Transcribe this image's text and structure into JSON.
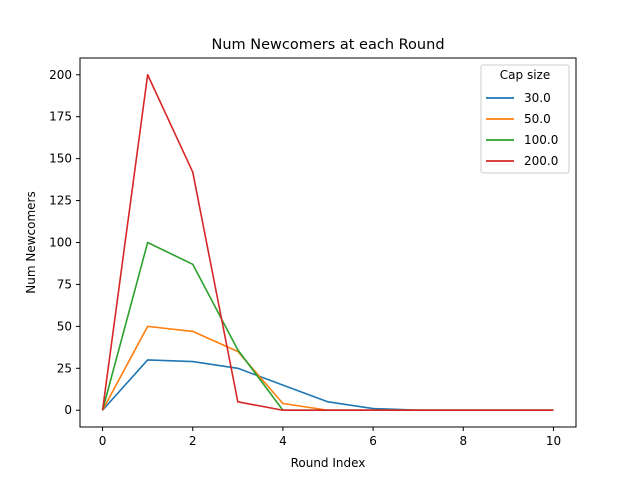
{
  "chart_data": {
    "type": "line",
    "title": "Num Newcomers at each Round",
    "xlabel": "Round Index",
    "ylabel": "Num Newcomers",
    "xlim": [
      -0.5,
      10.5
    ],
    "ylim": [
      -10,
      210
    ],
    "xticks": [
      0,
      2,
      4,
      6,
      8,
      10
    ],
    "yticks": [
      0,
      25,
      50,
      75,
      100,
      125,
      150,
      175,
      200
    ],
    "grid": false,
    "legend": {
      "title": "Cap size",
      "position": "top-right"
    },
    "x": [
      0,
      1,
      2,
      3,
      4,
      5,
      6,
      7,
      8,
      9,
      10
    ],
    "series": [
      {
        "name": "30.0",
        "color": "#1f77b4",
        "values": [
          0,
          30,
          29,
          25,
          15,
          5,
          1,
          0,
          0,
          0,
          0
        ]
      },
      {
        "name": "50.0",
        "color": "#ff7f0e",
        "values": [
          0,
          50,
          47,
          35,
          4,
          0,
          0,
          0,
          0,
          0,
          0
        ]
      },
      {
        "name": "100.0",
        "color": "#2ca02c",
        "values": [
          0,
          100,
          87,
          36,
          0,
          0,
          0,
          0,
          0,
          0,
          0
        ]
      },
      {
        "name": "200.0",
        "color": "#d62728",
        "values": [
          0,
          200,
          142,
          5,
          0,
          0,
          0,
          0,
          0,
          0,
          0
        ]
      }
    ]
  }
}
